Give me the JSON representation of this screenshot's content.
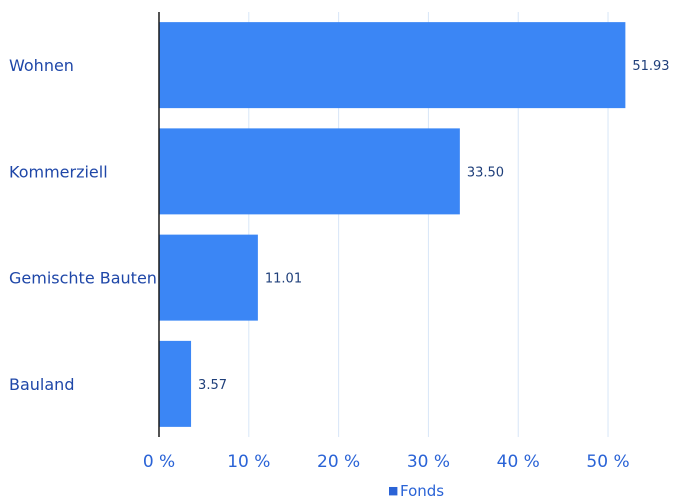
{
  "chart_data": {
    "type": "bar",
    "orientation": "horizontal",
    "categories": [
      "Wohnen",
      "Kommerziell",
      "Gemischte Bauten",
      "Bauland"
    ],
    "series": [
      {
        "name": "Fonds",
        "values": [
          51.93,
          33.5,
          11.01,
          3.57
        ],
        "color": "#3b86f5"
      }
    ],
    "value_labels": [
      "51.93",
      "33.50",
      "11.01",
      "3.57"
    ],
    "xlim": [
      0,
      52
    ],
    "x_ticks": [
      0,
      10,
      20,
      30,
      40,
      50
    ],
    "x_tick_labels": [
      "0 %",
      "10 %",
      "20 %",
      "30 %",
      "40 %",
      "50 %"
    ],
    "title": "",
    "xlabel": "",
    "ylabel": "",
    "grid": "vertical",
    "legend": {
      "placement": "bottom-center",
      "marker": "■",
      "label": "Fonds"
    },
    "colors": {
      "bar": "#3b86f5",
      "grid": "#d8e6f7",
      "axis": "#1a1a1a",
      "category_text": "#1f47a8",
      "tick_text": "#2a63d6",
      "value_text": "#1f3f7a"
    }
  }
}
